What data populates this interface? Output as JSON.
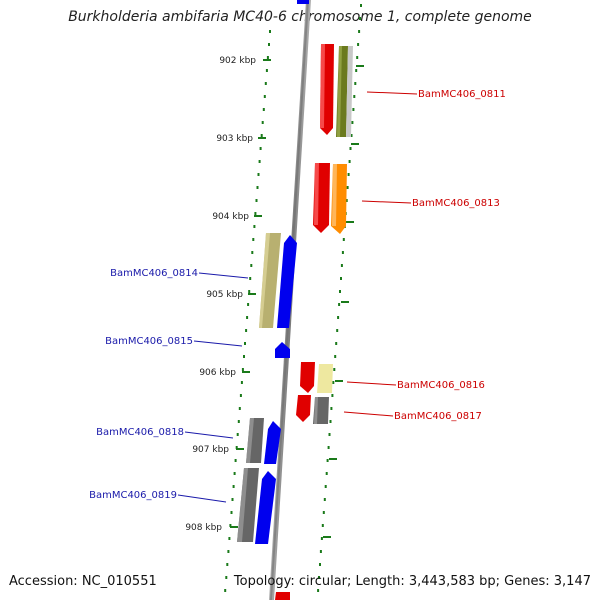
{
  "title": "Burkholderia ambifaria MC40-6 chromosome 1, complete genome",
  "footer": {
    "accession": "Accession: NC_010551",
    "summary": "Topology: circular; Length: 3,443,583 bp; Genes: 3,147"
  },
  "ticks": [
    {
      "label": "902 kbp"
    },
    {
      "label": "903 kbp"
    },
    {
      "label": "904 kbp"
    },
    {
      "label": "905 kbp"
    },
    {
      "label": "906 kbp"
    },
    {
      "label": "907 kbp"
    },
    {
      "label": "908 kbp"
    }
  ],
  "gene_labels": {
    "g0811": "BamMC406_0811",
    "g0813": "BamMC406_0813",
    "g0814": "BamMC406_0814",
    "g0815": "BamMC406_0815",
    "g0816": "BamMC406_0816",
    "g0817": "BamMC406_0817",
    "g0818": "BamMC406_0818",
    "g0819": "BamMC406_0819"
  },
  "colors": {
    "forward_label": "#cc0000",
    "reverse_label": "#1a1aaa",
    "red": "#e00000",
    "blue": "#0000ee",
    "olive": "#6b7a1e",
    "khaki": "#b8b070",
    "orange": "#ff8c00",
    "pale_yellow": "#eee8a0",
    "gray": "#666666",
    "light_gray": "#c8c8c8",
    "backbone": "#888888",
    "tick": "#1a7a1a"
  }
}
